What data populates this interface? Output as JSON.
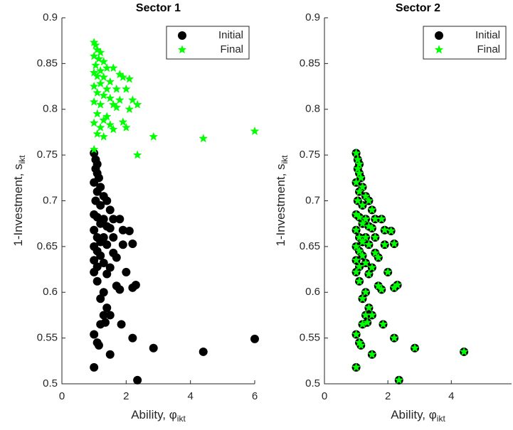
{
  "chart_data": [
    {
      "type": "scatter",
      "title": "Sector 1",
      "xlabel": "Ability, φ",
      "xlabel_subscript": "ikt",
      "ylabel": "1-Investment, s",
      "ylabel_subscript": "ikt",
      "xlim": [
        0,
        6
      ],
      "xticks": [
        0,
        2,
        4,
        6
      ],
      "ylim": [
        0.5,
        0.9
      ],
      "yticks": [
        0.5,
        0.55,
        0.6,
        0.65,
        0.7,
        0.75,
        0.8,
        0.85,
        0.9
      ],
      "legend": "upper right",
      "series": [
        {
          "name": "Initial",
          "color": "#000000",
          "marker": "circle",
          "x": [
            1.0,
            1.05,
            1.1,
            1.05,
            1.1,
            1.15,
            1.0,
            1.2,
            1.1,
            1.3,
            1.05,
            1.4,
            1.2,
            1.5,
            1.0,
            1.1,
            1.3,
            1.6,
            1.8,
            1.2,
            1.4,
            1.0,
            1.5,
            1.9,
            2.1,
            1.1,
            1.3,
            1.6,
            1.2,
            1.0,
            1.4,
            1.9,
            2.2,
            1.1,
            1.6,
            1.7,
            1.2,
            1.0,
            1.3,
            1.1,
            1.5,
            1.0,
            1.4,
            2.0,
            1.1,
            1.7,
            1.8,
            2.3,
            2.2,
            1.3,
            1.2,
            1.4,
            1.3,
            1.5,
            1.2,
            1.35,
            1.85,
            1.0,
            2.2,
            1.1,
            1.15,
            1.5,
            2.85,
            4.4,
            6.0,
            1.0,
            2.35
          ],
          "y": [
            0.752,
            0.745,
            0.74,
            0.735,
            0.73,
            0.725,
            0.72,
            0.715,
            0.71,
            0.705,
            0.7,
            0.7,
            0.695,
            0.69,
            0.685,
            0.682,
            0.68,
            0.68,
            0.68,
            0.675,
            0.672,
            0.668,
            0.67,
            0.668,
            0.667,
            0.66,
            0.66,
            0.66,
            0.655,
            0.65,
            0.652,
            0.652,
            0.653,
            0.645,
            0.643,
            0.638,
            0.64,
            0.635,
            0.632,
            0.628,
            0.627,
            0.622,
            0.62,
            0.622,
            0.612,
            0.607,
            0.603,
            0.608,
            0.605,
            0.6,
            0.593,
            0.583,
            0.575,
            0.575,
            0.565,
            0.567,
            0.565,
            0.554,
            0.55,
            0.545,
            0.542,
            0.532,
            0.539,
            0.535,
            0.549,
            0.518,
            0.504
          ]
        },
        {
          "name": "Final",
          "color": "#00ff00",
          "marker": "star",
          "x": [
            1.0,
            1.05,
            1.1,
            1.2,
            1.0,
            1.15,
            1.3,
            1.05,
            1.4,
            1.2,
            1.6,
            1.0,
            1.1,
            1.3,
            1.8,
            1.9,
            2.1,
            1.5,
            1.2,
            1.0,
            1.4,
            1.7,
            2.0,
            1.1,
            1.3,
            1.5,
            1.8,
            2.2,
            2.35,
            1.0,
            1.2,
            1.6,
            1.7,
            2.1,
            1.1,
            1.4,
            1.3,
            1.0,
            1.5,
            1.9,
            1.2,
            1.6,
            2.0,
            1.1,
            1.3,
            2.85,
            4.4,
            6.0,
            1.0,
            2.35
          ],
          "y": [
            0.873,
            0.87,
            0.865,
            0.862,
            0.858,
            0.855,
            0.852,
            0.848,
            0.845,
            0.842,
            0.845,
            0.84,
            0.836,
            0.835,
            0.838,
            0.835,
            0.833,
            0.83,
            0.828,
            0.825,
            0.822,
            0.822,
            0.822,
            0.818,
            0.815,
            0.812,
            0.81,
            0.81,
            0.805,
            0.808,
            0.805,
            0.805,
            0.802,
            0.8,
            0.795,
            0.792,
            0.788,
            0.785,
            0.783,
            0.786,
            0.78,
            0.778,
            0.78,
            0.773,
            0.77,
            0.77,
            0.768,
            0.776,
            0.756,
            0.75
          ]
        }
      ]
    },
    {
      "type": "scatter",
      "title": "Sector 2",
      "xlabel": "Ability, φ",
      "xlabel_subscript": "ikt",
      "ylabel": "1-Investment, s",
      "ylabel_subscript": "ikt",
      "xlim": [
        0,
        5.9
      ],
      "xticks": [
        0,
        2,
        4
      ],
      "ylim": [
        0.5,
        0.9
      ],
      "yticks": [
        0.5,
        0.55,
        0.6,
        0.65,
        0.7,
        0.75,
        0.8,
        0.85,
        0.9
      ],
      "legend": "upper right",
      "series": [
        {
          "name": "Initial",
          "color": "#000000",
          "marker": "circle",
          "x": [
            1.0,
            1.05,
            1.1,
            1.05,
            1.1,
            1.15,
            1.0,
            1.2,
            1.1,
            1.3,
            1.05,
            1.4,
            1.2,
            1.5,
            1.0,
            1.1,
            1.3,
            1.6,
            1.8,
            1.2,
            1.4,
            1.0,
            1.5,
            1.9,
            2.1,
            1.1,
            1.3,
            1.6,
            1.2,
            1.0,
            1.4,
            1.9,
            2.2,
            1.1,
            1.6,
            1.7,
            1.2,
            1.0,
            1.3,
            1.1,
            1.5,
            1.0,
            1.4,
            2.0,
            1.1,
            1.7,
            1.8,
            2.3,
            2.2,
            1.3,
            1.2,
            1.4,
            1.3,
            1.5,
            1.2,
            1.35,
            1.85,
            1.0,
            2.2,
            1.1,
            1.15,
            1.5,
            2.85,
            4.4,
            1.0,
            2.35
          ],
          "y": [
            0.752,
            0.745,
            0.74,
            0.735,
            0.73,
            0.725,
            0.72,
            0.715,
            0.71,
            0.705,
            0.7,
            0.7,
            0.695,
            0.69,
            0.685,
            0.682,
            0.68,
            0.68,
            0.68,
            0.675,
            0.672,
            0.668,
            0.67,
            0.668,
            0.667,
            0.66,
            0.66,
            0.66,
            0.655,
            0.65,
            0.652,
            0.652,
            0.653,
            0.645,
            0.643,
            0.638,
            0.64,
            0.635,
            0.632,
            0.628,
            0.627,
            0.622,
            0.62,
            0.622,
            0.612,
            0.607,
            0.603,
            0.608,
            0.605,
            0.6,
            0.593,
            0.583,
            0.575,
            0.575,
            0.565,
            0.567,
            0.565,
            0.554,
            0.55,
            0.545,
            0.542,
            0.532,
            0.539,
            0.535,
            0.518,
            0.504
          ]
        },
        {
          "name": "Final",
          "color": "#00ff00",
          "marker": "star",
          "x": [
            1.0,
            1.05,
            1.1,
            1.05,
            1.1,
            1.15,
            1.0,
            1.2,
            1.1,
            1.3,
            1.05,
            1.4,
            1.2,
            1.5,
            1.0,
            1.1,
            1.3,
            1.6,
            1.8,
            1.2,
            1.4,
            1.0,
            1.5,
            1.9,
            2.1,
            1.1,
            1.3,
            1.6,
            1.2,
            1.0,
            1.4,
            1.9,
            2.2,
            1.1,
            1.6,
            1.7,
            1.2,
            1.0,
            1.3,
            1.1,
            1.5,
            1.0,
            1.4,
            2.0,
            1.1,
            1.7,
            1.8,
            2.3,
            2.2,
            1.3,
            1.2,
            1.4,
            1.3,
            1.5,
            1.2,
            1.35,
            1.85,
            1.0,
            2.2,
            1.1,
            1.15,
            1.5,
            2.85,
            4.4,
            1.0,
            2.35
          ],
          "y": [
            0.752,
            0.745,
            0.74,
            0.735,
            0.73,
            0.725,
            0.72,
            0.715,
            0.71,
            0.705,
            0.7,
            0.7,
            0.695,
            0.69,
            0.685,
            0.682,
            0.68,
            0.68,
            0.68,
            0.675,
            0.672,
            0.668,
            0.67,
            0.668,
            0.667,
            0.66,
            0.66,
            0.66,
            0.655,
            0.65,
            0.652,
            0.652,
            0.653,
            0.645,
            0.643,
            0.638,
            0.64,
            0.635,
            0.632,
            0.628,
            0.627,
            0.622,
            0.62,
            0.622,
            0.612,
            0.607,
            0.603,
            0.608,
            0.605,
            0.6,
            0.593,
            0.583,
            0.575,
            0.575,
            0.565,
            0.567,
            0.565,
            0.554,
            0.55,
            0.545,
            0.542,
            0.532,
            0.539,
            0.535,
            0.518,
            0.504
          ]
        }
      ]
    }
  ]
}
